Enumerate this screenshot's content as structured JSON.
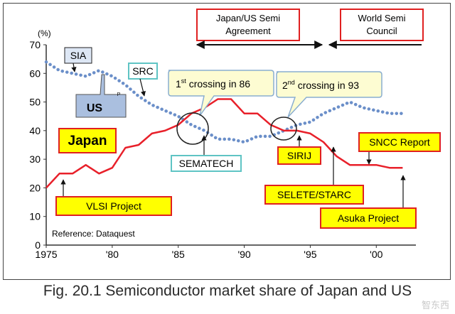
{
  "caption": "Fig. 20.1 Semiconductor market share of Japan and US",
  "watermark": "智东西",
  "chart_data": {
    "type": "line",
    "ylabel": "(%)",
    "ylim": [
      0,
      70
    ],
    "xlim": [
      1975,
      2003
    ],
    "yticks": [
      0,
      10,
      20,
      30,
      40,
      50,
      60,
      70
    ],
    "xticks": [
      {
        "value": 1975,
        "label": "1975"
      },
      {
        "value": 1980,
        "label": "'80"
      },
      {
        "value": 1985,
        "label": "'85"
      },
      {
        "value": 1990,
        "label": "'90"
      },
      {
        "value": 1995,
        "label": "'95"
      },
      {
        "value": 2000,
        "label": "'00"
      }
    ],
    "series": [
      {
        "name": "US",
        "style": "dotted",
        "color": "#6b8fc9",
        "x": [
          1975,
          1976,
          1977,
          1978,
          1979,
          1980,
          1981,
          1982,
          1983,
          1984,
          1985,
          1986,
          1987,
          1988,
          1989,
          1990,
          1991,
          1992,
          1993,
          1994,
          1995,
          1996,
          1997,
          1998,
          1999,
          2000,
          2001,
          2002
        ],
        "values": [
          64,
          61,
          60,
          59,
          61,
          59,
          56,
          52,
          49,
          47,
          45,
          42,
          40,
          37,
          37,
          36,
          38,
          38,
          40,
          42,
          43,
          46,
          48,
          50,
          48,
          47,
          46,
          46
        ]
      },
      {
        "name": "Japan",
        "style": "solid",
        "color": "#e8202a",
        "x": [
          1975,
          1976,
          1977,
          1978,
          1979,
          1980,
          1981,
          1982,
          1983,
          1984,
          1985,
          1986,
          1987,
          1988,
          1989,
          1990,
          1991,
          1992,
          1993,
          1994,
          1995,
          1996,
          1997,
          1998,
          1999,
          2000,
          2001,
          2002
        ],
        "values": [
          20,
          25,
          25,
          28,
          25,
          27,
          34,
          35,
          39,
          40,
          42,
          46,
          48,
          51,
          51,
          46,
          46,
          42,
          40,
          40,
          39,
          36,
          31,
          28,
          28,
          28,
          27,
          27
        ]
      }
    ],
    "labels": {
      "sia": "SIA",
      "src": "SRC",
      "us": "US",
      "us_p": "P",
      "japan": "Japan",
      "crossing1_pre": "1",
      "crossing1_sup": "st",
      "crossing1_post": " crossing in 86",
      "crossing2_pre": "2",
      "crossing2_sup": "nd",
      "crossing2_post": " crossing in 93",
      "japan_us_line1": "Japan/US  Semi",
      "japan_us_line2": "Agreement",
      "world_semi_line1": "World Semi",
      "world_semi_line2": "Council",
      "sematech": "SEMATECH",
      "sirij": "SIRIJ",
      "sncc": "SNCC  Report",
      "selete": "SELETE/STARC",
      "asuka": "Asuka  Project",
      "vlsi": "VLSI  Project",
      "reference": "Reference: Dataquest"
    },
    "colors": {
      "callout_yellow": "#ffff00",
      "callout_border": "#e02020",
      "cyan_border": "#5fc4c4",
      "crossing_fill": "#fdfcd2",
      "crossing_border": "#8aaed0",
      "us_box_fill": "#aabfdf",
      "axis": "#333333"
    }
  }
}
